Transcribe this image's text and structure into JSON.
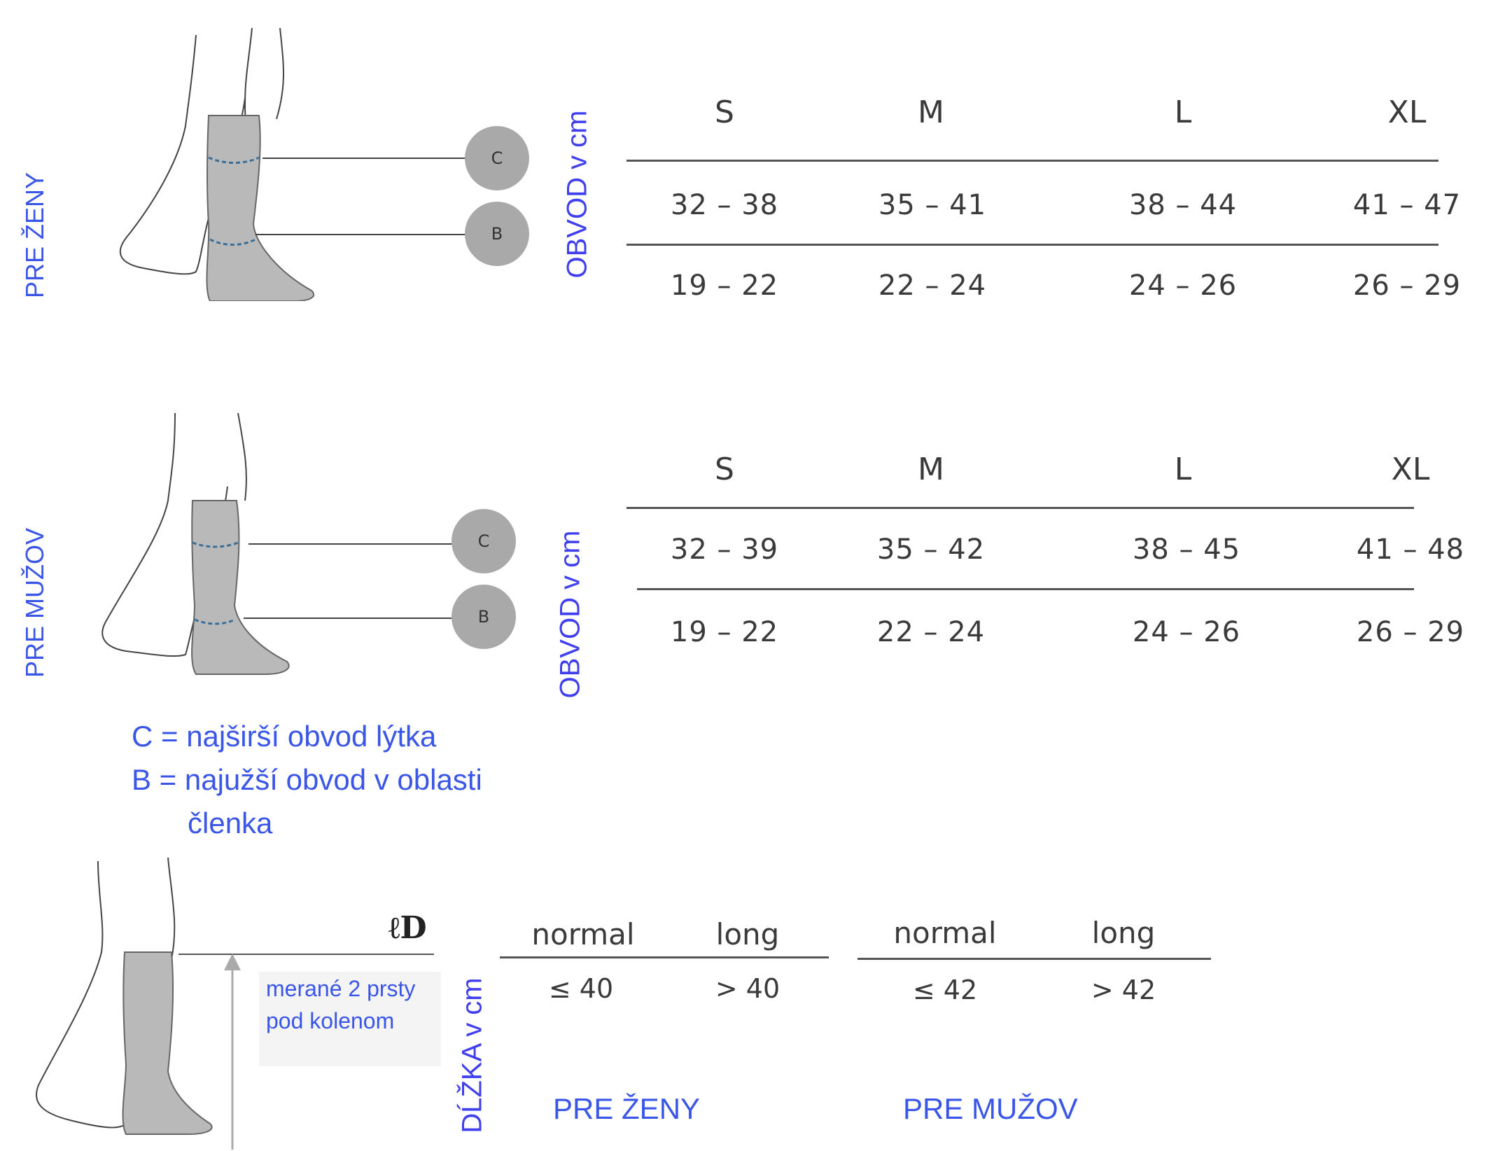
{
  "women_section": {
    "side_label": "PRE ŽENY",
    "axis_label": "OBVOD v cm",
    "markers": [
      "C",
      "B"
    ],
    "sizes": [
      "S",
      "M",
      "L",
      "XL"
    ],
    "row_c": [
      "32 – 38",
      "35 – 41",
      "38 – 44",
      "41 – 47"
    ],
    "row_b": [
      "19 – 22",
      "22 – 24",
      "24 – 26",
      "26 – 29"
    ]
  },
  "men_section": {
    "side_label": "PRE MUŽOV",
    "axis_label": "OBVOD v cm",
    "markers": [
      "C",
      "B"
    ],
    "sizes": [
      "S",
      "M",
      "L",
      "XL"
    ],
    "row_c": [
      "32 – 39",
      "35 – 42",
      "38 – 45",
      "41 – 48"
    ],
    "row_b": [
      "19 – 22",
      "22 – 24",
      "24 – 26",
      "26 – 29"
    ]
  },
  "legend": {
    "line_c": "C = najširší obvod lýtka",
    "line_b": "B = najužší obvod v oblasti",
    "line_b2": "členka"
  },
  "length_section": {
    "marker": "ℓD",
    "note_line1": "merané 2 prsty",
    "note_line2": "pod kolenom",
    "axis_label": "DĹŽKA v cm",
    "women": {
      "headers": [
        "normal",
        "long"
      ],
      "values": [
        "≤ 40",
        "> 40"
      ],
      "label": "PRE ŽENY"
    },
    "men": {
      "headers": [
        "normal",
        "long"
      ],
      "values": [
        "≤ 42",
        "> 42"
      ],
      "label": "PRE MUŽOV"
    }
  },
  "colors": {
    "accent_blue": "#3a56e8",
    "sock_gray": "#b9b9b9",
    "marker_gray": "#a9a9a9"
  }
}
